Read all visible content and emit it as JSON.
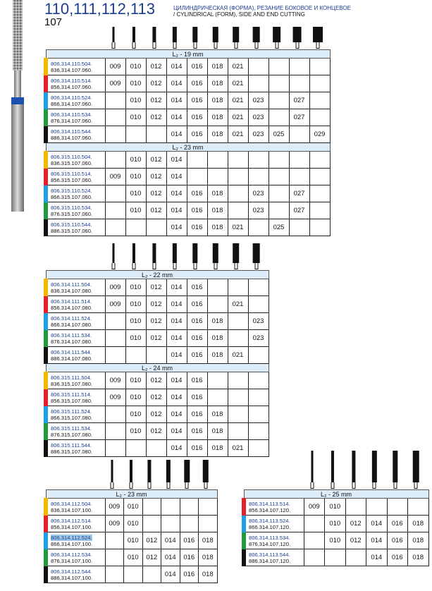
{
  "header": {
    "title": "110,111,112,113",
    "subtitle": "107",
    "desc_ru": "ЦИЛИНДРИЧЕСКАЯ (ФОРМА), РЕЗАНИЕ БОКОВОЕ И КОНЦЕВОЕ",
    "desc_en": "/ CYLINDRICAL (FORM), SIDE AND END CUTTING"
  },
  "colors": {
    "yellow": "#f5b800",
    "red": "#e4202a",
    "blue": "#1ea0e6",
    "green": "#1f9a3e",
    "black": "#111111",
    "section_bg": "#dcecf8",
    "code_blue": "#1b3d8f"
  },
  "tables": [
    {
      "cols": 11,
      "sections": [
        {
          "label": "L₂ - 19 mm",
          "rows": [
            {
              "color": "yellow",
              "codes": [
                "806.314.110.504.",
                "836.314.107.060."
              ],
              "sizes": [
                "009",
                "010",
                "012",
                "014",
                "016",
                "018",
                "021",
                "",
                "",
                "",
                ""
              ]
            },
            {
              "color": "red",
              "codes": [
                "806.314.110.514.",
                "856.314.107.060."
              ],
              "sizes": [
                "009",
                "010",
                "012",
                "014",
                "016",
                "018",
                "021",
                "",
                "",
                "",
                ""
              ]
            },
            {
              "color": "blue",
              "codes": [
                "806.314.110.524.",
                "866.314.107.060."
              ],
              "sizes": [
                "",
                "010",
                "012",
                "014",
                "016",
                "018",
                "021",
                "023",
                "",
                "027",
                ""
              ]
            },
            {
              "color": "green",
              "codes": [
                "806.314.110.534.",
                "876.314.107.060."
              ],
              "sizes": [
                "",
                "010",
                "012",
                "014",
                "016",
                "018",
                "021",
                "023",
                "",
                "027",
                ""
              ]
            },
            {
              "color": "black",
              "codes": [
                "806.314.110.544.",
                "886.314.107.060."
              ],
              "sizes": [
                "",
                "",
                "",
                "014",
                "016",
                "018",
                "021",
                "023",
                "025",
                "",
                "029"
              ]
            }
          ]
        },
        {
          "label": "L₂ - 23 mm",
          "rows": [
            {
              "color": "yellow",
              "codes": [
                "806.315.110.504.",
                "836.315.107.060."
              ],
              "sizes": [
                "",
                "010",
                "012",
                "014",
                "",
                "",
                "",
                "",
                "",
                "",
                ""
              ]
            },
            {
              "color": "red",
              "codes": [
                "806.315.110.514.",
                "856.315.107.060."
              ],
              "sizes": [
                "009",
                "010",
                "012",
                "014",
                "",
                "",
                "",
                "",
                "",
                "",
                ""
              ]
            },
            {
              "color": "blue",
              "codes": [
                "806.315.110.524.",
                "866.315.107.060."
              ],
              "sizes": [
                "",
                "010",
                "012",
                "014",
                "016",
                "018",
                "",
                "023",
                "",
                "027",
                ""
              ]
            },
            {
              "color": "green",
              "codes": [
                "806.315.110.534.",
                "876.315.107.060."
              ],
              "sizes": [
                "",
                "010",
                "012",
                "014",
                "016",
                "018",
                "",
                "023",
                "",
                "027",
                ""
              ]
            },
            {
              "color": "black",
              "codes": [
                "806.315.110.544.",
                "886.315.107.060."
              ],
              "sizes": [
                "",
                "",
                "",
                "014",
                "016",
                "018",
                "021",
                "",
                "025",
                "",
                ""
              ]
            }
          ]
        }
      ]
    },
    {
      "cols": 8,
      "sections": [
        {
          "label": "L₂ - 22 mm",
          "rows": [
            {
              "color": "yellow",
              "codes": [
                "806.314.111.504.",
                "836.314.107.080."
              ],
              "sizes": [
                "009",
                "010",
                "012",
                "014",
                "016",
                "",
                "",
                ""
              ]
            },
            {
              "color": "red",
              "codes": [
                "806.314.111.514.",
                "856.314.107.080."
              ],
              "sizes": [
                "009",
                "010",
                "012",
                "014",
                "016",
                "",
                "021",
                ""
              ]
            },
            {
              "color": "blue",
              "codes": [
                "806.314.111.524.",
                "866.314.107.080."
              ],
              "sizes": [
                "",
                "010",
                "012",
                "014",
                "016",
                "018",
                "",
                "023"
              ]
            },
            {
              "color": "green",
              "codes": [
                "806.314.111.534.",
                "876.314.107.080."
              ],
              "sizes": [
                "",
                "010",
                "012",
                "014",
                "016",
                "018",
                "",
                "023"
              ]
            },
            {
              "color": "black",
              "codes": [
                "806.314.111.544.",
                "886.314.107.080."
              ],
              "sizes": [
                "",
                "",
                "",
                "014",
                "016",
                "018",
                "021",
                ""
              ]
            }
          ]
        },
        {
          "label": "L₂ - 24 mm",
          "rows": [
            {
              "color": "yellow",
              "codes": [
                "806.315.111.504.",
                "836.315.107.080."
              ],
              "sizes": [
                "009",
                "010",
                "012",
                "014",
                "016",
                "",
                "",
                ""
              ]
            },
            {
              "color": "red",
              "codes": [
                "806.315.111.514.",
                "856.315.107.080."
              ],
              "sizes": [
                "009",
                "010",
                "012",
                "014",
                "016",
                "",
                "",
                ""
              ]
            },
            {
              "color": "blue",
              "codes": [
                "806.315.111.524.",
                "866.315.107.080."
              ],
              "sizes": [
                "",
                "010",
                "012",
                "014",
                "016",
                "018",
                "",
                ""
              ]
            },
            {
              "color": "green",
              "codes": [
                "806.315.111.534.",
                "876.315.107.080."
              ],
              "sizes": [
                "",
                "010",
                "012",
                "014",
                "016",
                "018",
                "",
                ""
              ]
            },
            {
              "color": "black",
              "codes": [
                "806.315.111.544.",
                "886.315.107.080."
              ],
              "sizes": [
                "",
                "",
                "",
                "014",
                "016",
                "018",
                "021",
                ""
              ]
            }
          ]
        }
      ]
    },
    {
      "cols": 6,
      "sections": [
        {
          "label": "L₂ - 23 mm",
          "rows": [
            {
              "color": "yellow",
              "codes": [
                "806.314.112.504.",
                "836.314.107.100."
              ],
              "sizes": [
                "009",
                "010",
                "",
                "",
                "",
                ""
              ]
            },
            {
              "color": "red",
              "codes": [
                "806.314.112.514.",
                "856.314.107.100."
              ],
              "sizes": [
                "009",
                "010",
                "",
                "",
                "",
                ""
              ]
            },
            {
              "color": "blue",
              "codes": [
                "806.314.112.524.",
                "866.314.107.100."
              ],
              "sizes": [
                "",
                "010",
                "012",
                "014",
                "016",
                "018"
              ],
              "selected": true
            },
            {
              "color": "green",
              "codes": [
                "806.314.112.534.",
                "876.314.107.100."
              ],
              "sizes": [
                "",
                "010",
                "012",
                "014",
                "016",
                "018"
              ]
            },
            {
              "color": "black",
              "codes": [
                "806.314.112.544.",
                "886.314.107.100."
              ],
              "sizes": [
                "",
                "",
                "",
                "014",
                "016",
                "018"
              ]
            }
          ]
        }
      ]
    },
    {
      "cols": 6,
      "sections": [
        {
          "label": "L₂ - 25 mm",
          "rows": [
            {
              "color": "red",
              "codes": [
                "806.314.113.514.",
                "856.314.107.120."
              ],
              "sizes": [
                "009",
                "010",
                "",
                "",
                "",
                ""
              ]
            },
            {
              "color": "blue",
              "codes": [
                "806.314.113.524.",
                "866.314.107.120."
              ],
              "sizes": [
                "",
                "010",
                "012",
                "014",
                "016",
                "018"
              ]
            },
            {
              "color": "green",
              "codes": [
                "806.314.113.534.",
                "876.314.107.120."
              ],
              "sizes": [
                "",
                "010",
                "012",
                "014",
                "016",
                "018"
              ]
            },
            {
              "color": "black",
              "codes": [
                "806.314.113.544.",
                "886.314.107.120."
              ],
              "sizes": [
                "",
                "",
                "",
                "014",
                "016",
                "018"
              ]
            }
          ]
        }
      ]
    }
  ]
}
